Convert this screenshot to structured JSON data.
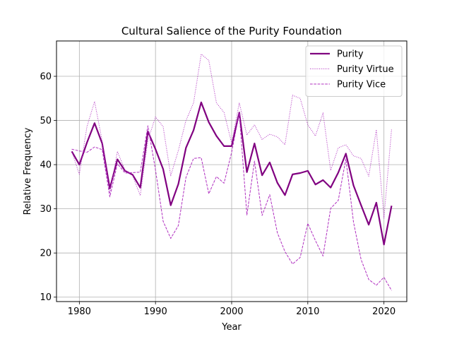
{
  "chart_data": {
    "type": "line",
    "title": "Cultural Salience of the Purity Foundation",
    "xlabel": "Year",
    "ylabel": "Relative Frequency",
    "xlim": [
      1977,
      2023
    ],
    "ylim": [
      9,
      68
    ],
    "xticks": [
      1980,
      1990,
      2000,
      2010,
      2020
    ],
    "yticks": [
      10,
      20,
      30,
      40,
      50,
      60
    ],
    "grid": true,
    "legend_position": "top-right",
    "x": [
      1979,
      1980,
      1981,
      1982,
      1983,
      1984,
      1985,
      1986,
      1987,
      1988,
      1989,
      1990,
      1991,
      1992,
      1993,
      1994,
      1995,
      1996,
      1997,
      1998,
      1999,
      2000,
      2001,
      2002,
      2003,
      2004,
      2005,
      2006,
      2007,
      2008,
      2009,
      2010,
      2011,
      2012,
      2013,
      2014,
      2015,
      2016,
      2017,
      2018,
      2019,
      2020,
      2021
    ],
    "series": [
      {
        "name": "Purity",
        "color": "#800080",
        "style": "solid",
        "values": [
          43.0,
          40.0,
          45.0,
          49.4,
          44.8,
          34.6,
          41.2,
          38.6,
          37.7,
          34.8,
          47.5,
          43.5,
          39.0,
          30.8,
          35.6,
          43.8,
          47.8,
          54.1,
          49.6,
          46.5,
          44.2,
          44.2,
          51.8,
          38.3,
          44.8,
          37.6,
          40.5,
          35.9,
          33.1,
          37.8,
          38.1,
          38.6,
          35.5,
          36.5,
          34.8,
          38.2,
          42.5,
          35.3,
          30.8,
          26.4,
          31.4,
          21.9,
          30.7
        ]
      },
      {
        "name": "Purity Virtue",
        "color": "#b030c0",
        "style": "dotted",
        "values": [
          43.0,
          37.8,
          48.6,
          54.3,
          45.3,
          33.5,
          43.0,
          38.7,
          37.5,
          33.0,
          45.5,
          50.8,
          48.6,
          37.5,
          43.2,
          50.0,
          54.0,
          65.0,
          63.6,
          54.0,
          51.8,
          44.9,
          54.0,
          46.7,
          49.0,
          45.7,
          46.9,
          46.3,
          44.5,
          55.7,
          55.0,
          49.0,
          46.5,
          51.7,
          38.7,
          43.8,
          44.5,
          42.0,
          41.4,
          37.4,
          47.9,
          27.9,
          48.0
        ]
      },
      {
        "name": "Purity Vice",
        "color": "#b030c0",
        "style": "dashed",
        "values": [
          43.5,
          43.1,
          42.8,
          44.0,
          43.4,
          32.7,
          40.2,
          38.1,
          38.2,
          38.3,
          48.8,
          38.8,
          27.2,
          23.3,
          26.2,
          37.1,
          41.4,
          41.6,
          33.4,
          37.3,
          35.8,
          42.8,
          51.7,
          28.6,
          40.8,
          28.5,
          33.2,
          24.6,
          20.3,
          17.5,
          19.0,
          26.7,
          22.8,
          19.3,
          30.1,
          31.9,
          41.3,
          27.0,
          18.5,
          14.0,
          12.7,
          14.5,
          11.5
        ]
      }
    ]
  }
}
